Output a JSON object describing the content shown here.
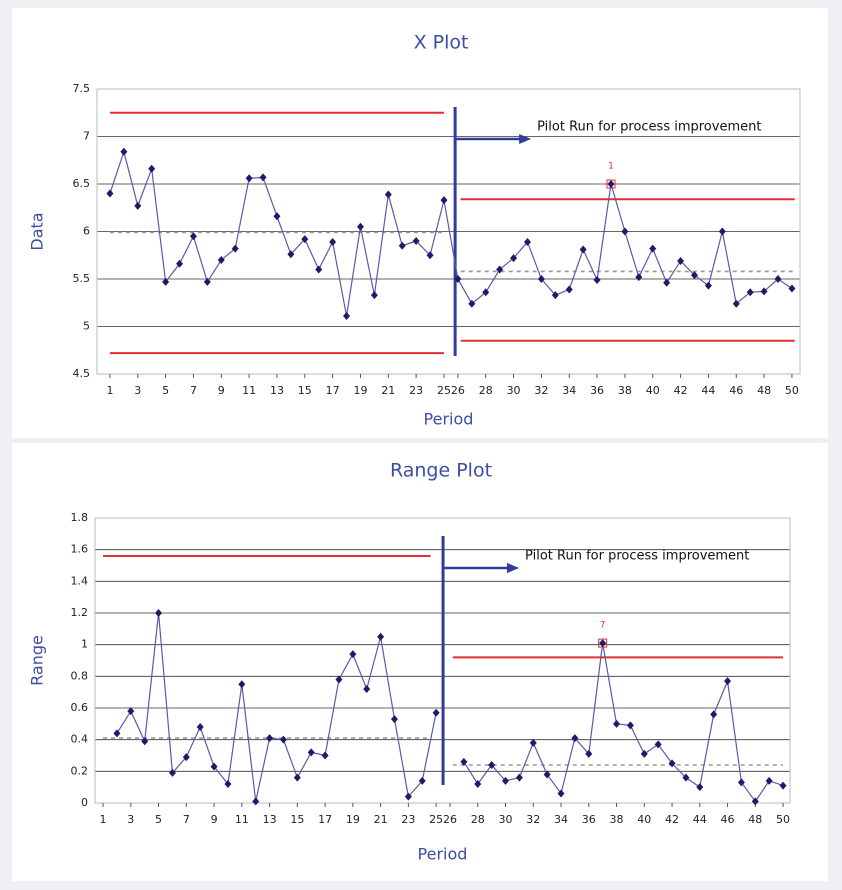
{
  "chart_data": [
    {
      "type": "line",
      "title": "X Plot",
      "xlabel": "Period",
      "ylabel": "Data",
      "x": [
        1,
        2,
        3,
        4,
        5,
        6,
        7,
        8,
        9,
        10,
        11,
        12,
        13,
        14,
        15,
        16,
        17,
        18,
        19,
        20,
        21,
        22,
        23,
        24,
        25,
        26,
        27,
        28,
        29,
        30,
        31,
        32,
        33,
        34,
        35,
        36,
        37,
        38,
        39,
        40,
        41,
        42,
        43,
        44,
        45,
        46,
        47,
        48,
        49,
        50
      ],
      "series": [
        {
          "color": "#1c1c6b",
          "values": [
            6.4,
            6.84,
            6.27,
            6.66,
            5.47,
            5.66,
            5.95,
            5.47,
            5.7,
            5.82,
            6.56,
            6.57,
            6.16,
            5.76,
            5.92,
            5.6,
            5.89,
            5.11,
            6.05,
            5.33,
            6.39,
            5.85,
            5.9,
            5.75,
            6.33,
            5.5,
            5.24,
            5.36,
            5.6,
            5.72,
            5.89,
            5.5,
            5.33,
            5.39,
            5.81,
            5.49,
            6.5,
            6.0,
            5.52,
            5.82,
            5.46,
            5.69,
            5.54,
            5.43,
            6.0,
            5.24,
            5.36,
            5.37,
            5.5,
            5.4
          ]
        }
      ],
      "control_lines": [
        {
          "x": [
            1,
            25
          ],
          "value": 7.25,
          "color": "#e03030",
          "dashed": false
        },
        {
          "x": [
            1,
            25
          ],
          "value": 5.99,
          "color": "#999999",
          "dashed": true
        },
        {
          "x": [
            1,
            25
          ],
          "value": 4.72,
          "color": "#e03030",
          "dashed": false
        },
        {
          "x": [
            26.2,
            50.2
          ],
          "value": 6.34,
          "color": "#e03030",
          "dashed": false
        },
        {
          "x": [
            26.2,
            50.2
          ],
          "value": 5.58,
          "color": "#999999",
          "dashed": true
        },
        {
          "x": [
            26.2,
            50.2
          ],
          "value": 4.85,
          "color": "#e03030",
          "dashed": false
        }
      ],
      "divider": 25.8,
      "annotation": "Pilot Run for process improvement",
      "flags": [
        {
          "x": 37,
          "label": "1"
        }
      ],
      "xlim": [
        0.07,
        50.58
      ],
      "ylim": [
        4.5,
        7.5
      ],
      "xticks": [
        1,
        3,
        5,
        7,
        9,
        11,
        13,
        15,
        17,
        19,
        21,
        23,
        25,
        26,
        28,
        30,
        32,
        34,
        36,
        38,
        40,
        42,
        44,
        46,
        48,
        50
      ],
      "yticks": [
        4.5,
        5,
        5.5,
        6,
        6.5,
        7,
        7.5
      ],
      "grid": true
    },
    {
      "type": "line",
      "title": "Range Plot",
      "xlabel": "Period",
      "ylabel": "Range",
      "x": [
        1,
        2,
        3,
        4,
        5,
        6,
        7,
        8,
        9,
        10,
        11,
        12,
        13,
        14,
        15,
        16,
        17,
        18,
        19,
        20,
        21,
        22,
        23,
        24,
        25,
        26,
        27,
        28,
        29,
        30,
        31,
        32,
        33,
        34,
        35,
        36,
        37,
        38,
        39,
        40,
        41,
        42,
        43,
        44,
        45,
        46,
        47,
        48,
        49,
        50
      ],
      "series": [
        {
          "color": "#1c1c6b",
          "values": [
            null,
            0.44,
            0.58,
            0.39,
            1.2,
            0.19,
            0.29,
            0.48,
            0.23,
            0.12,
            0.75,
            0.01,
            0.41,
            0.4,
            0.16,
            0.32,
            0.3,
            0.78,
            0.94,
            0.72,
            1.05,
            0.53,
            0.04,
            0.14,
            0.57,
            null,
            0.26,
            0.12,
            0.24,
            0.14,
            0.16,
            0.38,
            0.18,
            0.06,
            0.41,
            0.31,
            1.01,
            0.5,
            0.49,
            0.31,
            0.37,
            0.25,
            0.16,
            0.1,
            0.56,
            0.77,
            0.13,
            0.01,
            0.14,
            0.11
          ]
        }
      ],
      "control_lines": [
        {
          "x": [
            1,
            24.6
          ],
          "value": 1.56,
          "color": "#e03030",
          "dashed": false
        },
        {
          "x": [
            1,
            24.6
          ],
          "value": 0.41,
          "color": "#999999",
          "dashed": true
        },
        {
          "x": [
            26.2,
            50
          ],
          "value": 0.92,
          "color": "#e03030",
          "dashed": false
        },
        {
          "x": [
            26.2,
            50
          ],
          "value": 0.24,
          "color": "#999999",
          "dashed": true
        }
      ],
      "divider": 25.5,
      "annotation": "Pilot Run for process improvement",
      "flags": [
        {
          "x": 37,
          "label": "7"
        }
      ],
      "xlim": [
        0.42,
        50.5
      ],
      "ylim": [
        0,
        1.8
      ],
      "xticks": [
        1,
        3,
        5,
        7,
        9,
        11,
        13,
        15,
        17,
        19,
        21,
        23,
        25,
        26,
        28,
        30,
        32,
        34,
        36,
        38,
        40,
        42,
        44,
        46,
        48,
        50
      ],
      "yticks": [
        0,
        0.2,
        0.4,
        0.6,
        0.8,
        1,
        1.2,
        1.4,
        1.6,
        1.8
      ],
      "grid": true
    }
  ]
}
